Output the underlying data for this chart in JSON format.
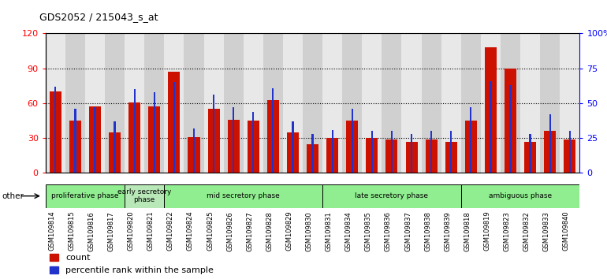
{
  "title": "GDS2052 / 215043_s_at",
  "samples": [
    "GSM109814",
    "GSM109815",
    "GSM109816",
    "GSM109817",
    "GSM109820",
    "GSM109821",
    "GSM109822",
    "GSM109824",
    "GSM109825",
    "GSM109826",
    "GSM109827",
    "GSM109828",
    "GSM109829",
    "GSM109830",
    "GSM109831",
    "GSM109834",
    "GSM109835",
    "GSM109836",
    "GSM109837",
    "GSM109838",
    "GSM109839",
    "GSM109818",
    "GSM109819",
    "GSM109823",
    "GSM109832",
    "GSM109833",
    "GSM109840"
  ],
  "count": [
    70,
    45,
    57,
    35,
    61,
    57,
    87,
    31,
    55,
    46,
    45,
    63,
    35,
    25,
    30,
    45,
    30,
    29,
    27,
    29,
    27,
    45,
    108,
    90,
    27,
    36,
    29
  ],
  "percentile": [
    62,
    46,
    47,
    37,
    60,
    58,
    65,
    32,
    56,
    47,
    44,
    61,
    37,
    28,
    31,
    46,
    30,
    30,
    28,
    30,
    30,
    47,
    66,
    63,
    28,
    42,
    30
  ],
  "phases": [
    {
      "label": "proliferative phase",
      "start": 0,
      "end": 3,
      "color": "#90EE90"
    },
    {
      "label": "early secretory\nphase",
      "start": 4,
      "end": 5,
      "color": "#b8e8b8"
    },
    {
      "label": "mid secretory phase",
      "start": 6,
      "end": 13,
      "color": "#90EE90"
    },
    {
      "label": "late secretory phase",
      "start": 14,
      "end": 20,
      "color": "#90EE90"
    },
    {
      "label": "ambiguous phase",
      "start": 21,
      "end": 26,
      "color": "#90EE90"
    }
  ],
  "other_label": "other",
  "ylim_left": [
    0,
    120
  ],
  "ylim_right": [
    0,
    100
  ],
  "yticks_left": [
    0,
    30,
    60,
    90,
    120
  ],
  "yticks_right": [
    0,
    25,
    50,
    75,
    100
  ],
  "ytick_right_labels": [
    "0",
    "25",
    "50",
    "75",
    "100%"
  ],
  "bar_color_count": "#cc1100",
  "bar_color_percentile": "#2233cc",
  "legend_count": "count",
  "legend_percentile": "percentile rank within the sample",
  "col_colors": [
    "#e8e8e8",
    "#d0d0d0"
  ]
}
